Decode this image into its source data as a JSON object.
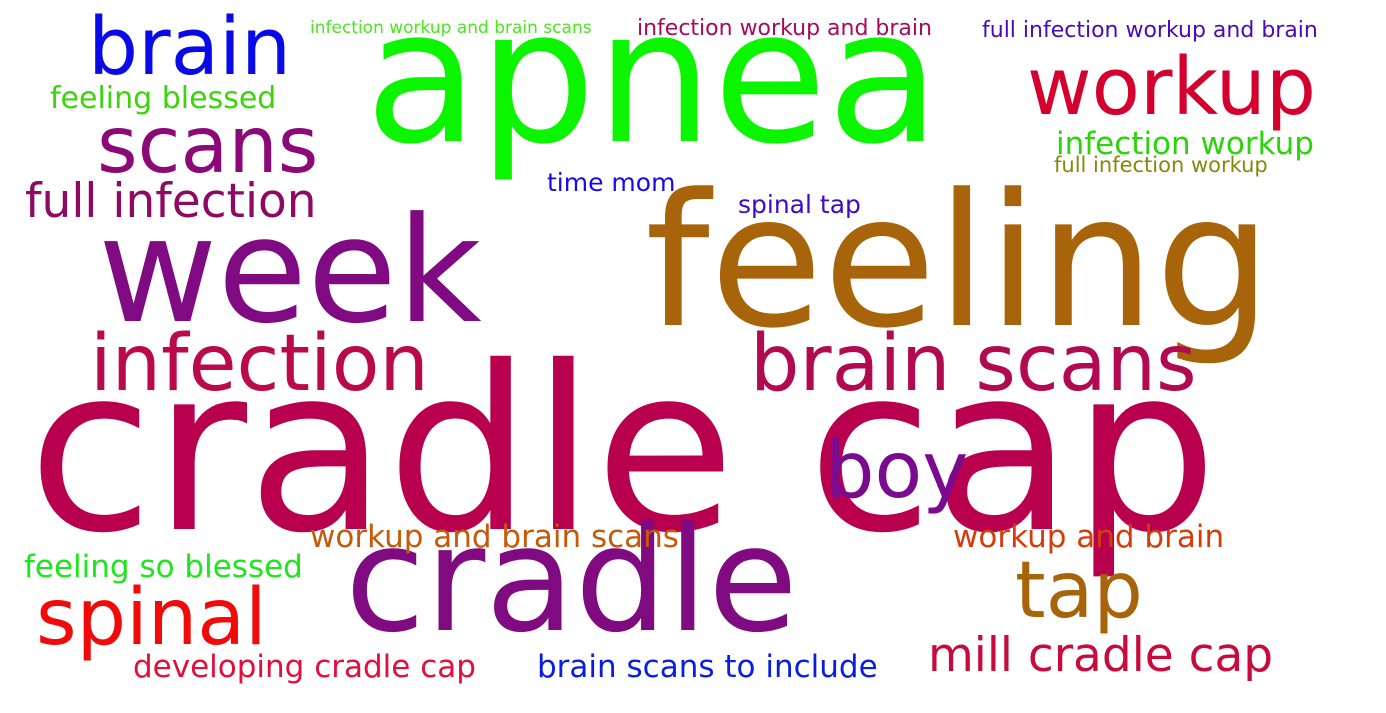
{
  "words": [
    {
      "key": "cradle_cap",
      "text": "cradle cap",
      "color": "#B8004E"
    },
    {
      "key": "apnea",
      "text": "apnea",
      "color": "#0CF500"
    },
    {
      "key": "feeling",
      "text": "feeling",
      "color": "#A8640A"
    },
    {
      "key": "week",
      "text": "week",
      "color": "#7F0A82"
    },
    {
      "key": "cradle",
      "text": "cradle",
      "color": "#800A80"
    },
    {
      "key": "brain",
      "text": "brain",
      "color": "#0A0AE6"
    },
    {
      "key": "workup",
      "text": "workup",
      "color": "#D4002E"
    },
    {
      "key": "scans",
      "text": "scans",
      "color": "#8B0A78"
    },
    {
      "key": "infection",
      "text": "infection",
      "color": "#BA0A4A"
    },
    {
      "key": "brain_scans",
      "text": "brain scans",
      "color": "#B20A50"
    },
    {
      "key": "full_infection",
      "text": "full infection",
      "color": "#8E0A62"
    },
    {
      "key": "boy",
      "text": "boy",
      "color": "#7A0A8E"
    },
    {
      "key": "tap",
      "text": "tap",
      "color": "#A8640A"
    },
    {
      "key": "spinal",
      "text": "spinal",
      "color": "#F00A0A"
    },
    {
      "key": "mill_cradle_cap",
      "text": "mill cradle cap",
      "color": "#C80A3C"
    },
    {
      "key": "infection_workup",
      "text": "infection workup",
      "color": "#2BD40A"
    },
    {
      "key": "feeling_blessed",
      "text": "feeling blessed",
      "color": "#3CD40A"
    },
    {
      "key": "workup_and_brain_scans",
      "text": "workup and brain scans",
      "color": "#C45A0A"
    },
    {
      "key": "workup_and_brain",
      "text": "workup and brain",
      "color": "#D43C0A"
    },
    {
      "key": "feeling_so_blessed",
      "text": "feeling so blessed",
      "color": "#1EE61E"
    },
    {
      "key": "developing_cradle_cap",
      "text": "developing cradle cap",
      "color": "#E0103C"
    },
    {
      "key": "brain_scans_to_include",
      "text": "brain scans to include",
      "color": "#0A1EE0"
    },
    {
      "key": "spinal_tap",
      "text": "spinal tap",
      "color": "#3C0AC8"
    },
    {
      "key": "time_mom",
      "text": "time mom",
      "color": "#1A0AE6"
    },
    {
      "key": "infection_workup_and_brain_scans",
      "text": "infection workup and brain scans",
      "color": "#4CE61E"
    },
    {
      "key": "infection_workup_and_brain",
      "text": "infection workup and brain",
      "color": "#A80A5A"
    },
    {
      "key": "full_infection_workup_and_brain",
      "text": "full infection workup and brain",
      "color": "#4A0AB4"
    },
    {
      "key": "full_infection_workup",
      "text": "full infection workup",
      "color": "#7E8C0A"
    }
  ]
}
